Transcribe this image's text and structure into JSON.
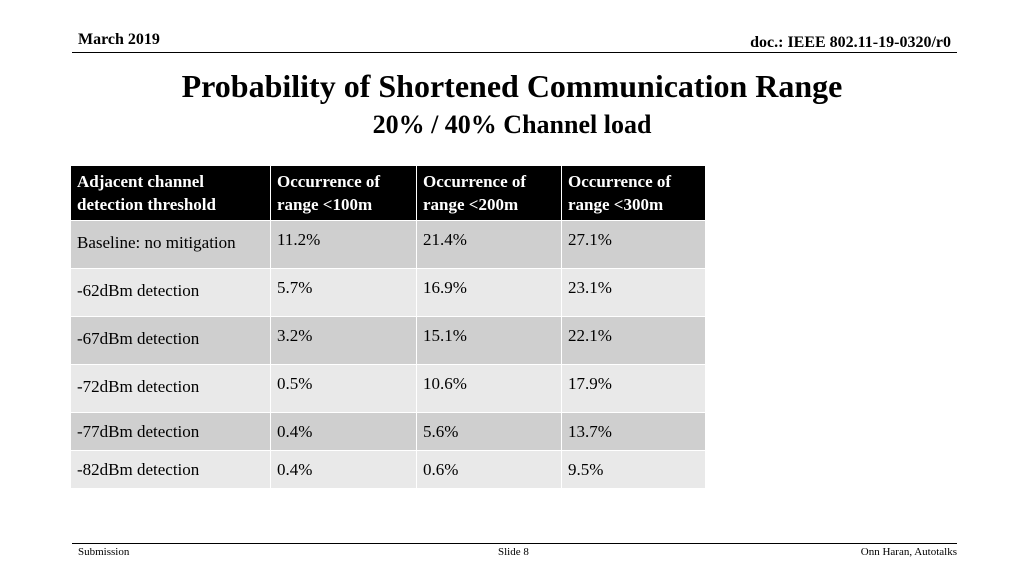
{
  "header": {
    "date": "March 2019",
    "doc": "doc.: IEEE 802.11-19-0320/r0"
  },
  "title": "Probability of Shortened Communication Range",
  "subtitle": "20% / 40% Channel load",
  "table": {
    "columns": [
      "Adjacent channel detection threshold",
      "Occurrence of range <100m",
      "Occurrence of range <200m",
      "Occurrence of range <300m"
    ],
    "rows": [
      [
        "Baseline: no mitigation",
        "11.2%",
        "21.4%",
        "27.1%"
      ],
      [
        "-62dBm detection",
        "5.7%",
        "16.9%",
        "23.1%"
      ],
      [
        "-67dBm detection",
        "3.2%",
        "15.1%",
        "22.1%"
      ],
      [
        "-72dBm detection",
        "0.5%",
        "10.6%",
        "17.9%"
      ],
      [
        "-77dBm detection",
        "0.4%",
        "5.6%",
        "13.7%"
      ],
      [
        "-82dBm detection",
        "0.4%",
        "0.6%",
        "9.5%"
      ]
    ]
  },
  "footer": {
    "left": "Submission",
    "center": "Slide 8",
    "right": "Onn Haran, Autotalks"
  }
}
